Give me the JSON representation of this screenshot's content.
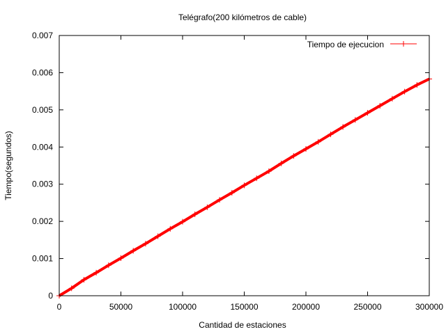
{
  "chart_data": {
    "type": "scatter",
    "title": "Telégrafo(200 kilómetros de cable)",
    "xlabel": "Cantidad de estaciones",
    "ylabel": "Tiempo(segundos)",
    "xlim": [
      0,
      300000
    ],
    "ylim": [
      0,
      0.007
    ],
    "x_ticks": [
      0,
      50000,
      100000,
      150000,
      200000,
      250000,
      300000
    ],
    "x_tick_labels": [
      "0",
      "50000",
      "100000",
      "150000",
      "200000",
      "250000",
      "300000"
    ],
    "y_ticks": [
      0,
      0.001,
      0.002,
      0.003,
      0.004,
      0.005,
      0.006,
      0.007
    ],
    "y_tick_labels": [
      "0",
      "0.001",
      "0.002",
      "0.003",
      "0.004",
      "0.005",
      "0.006",
      "0.007"
    ],
    "grid": false,
    "legend_position": "top-right",
    "marker": "plus",
    "series": [
      {
        "name": "Tiempo de ejecucion",
        "color": "#ff0000",
        "x": [
          0,
          10000,
          20000,
          30000,
          40000,
          50000,
          60000,
          70000,
          80000,
          90000,
          100000,
          110000,
          120000,
          130000,
          140000,
          150000,
          160000,
          170000,
          180000,
          190000,
          200000,
          210000,
          220000,
          230000,
          240000,
          250000,
          260000,
          270000,
          280000,
          290000,
          300000
        ],
        "y": [
          0.0,
          0.0002,
          0.00043,
          0.00062,
          0.00082,
          0.00101,
          0.00121,
          0.0014,
          0.0016,
          0.0018,
          0.00199,
          0.00219,
          0.00238,
          0.00258,
          0.00277,
          0.00297,
          0.00316,
          0.00335,
          0.00356,
          0.00376,
          0.00395,
          0.00414,
          0.00434,
          0.00454,
          0.00473,
          0.00492,
          0.00511,
          0.0053,
          0.00549,
          0.00567,
          0.00583
        ]
      }
    ]
  }
}
